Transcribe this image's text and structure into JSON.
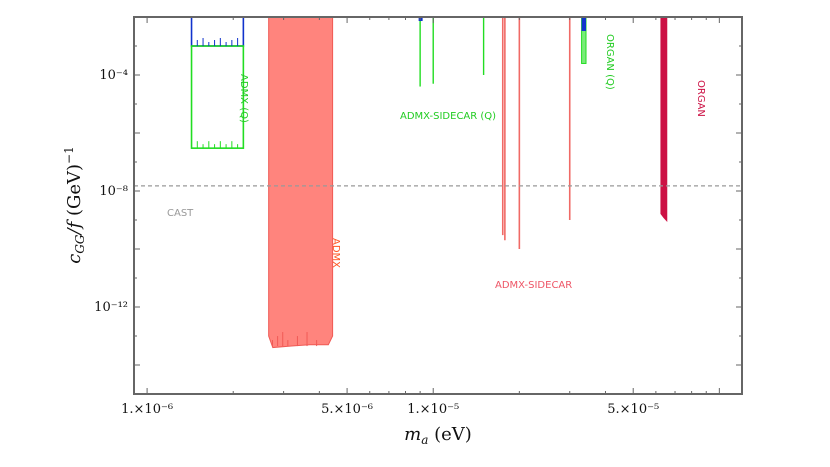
{
  "chart_data": {
    "type": "area",
    "title": "",
    "xlabel": "m_a (eV)",
    "ylabel": "c_GG/f (GeV)^-1",
    "xscale": "log",
    "yscale": "log",
    "xlim": [
      9e-07,
      0.00012
    ],
    "ylim": [
      1e-15,
      0.01
    ],
    "x_ticks": [
      {
        "value": 1e-06,
        "label": "1.×10⁻⁶"
      },
      {
        "value": 5e-06,
        "label": "5.×10⁻⁶"
      },
      {
        "value": 1e-05,
        "label": "1.×10⁻⁵"
      },
      {
        "value": 5e-05,
        "label": "5.×10⁻⁵"
      }
    ],
    "y_ticks": [
      {
        "value": 0.0001,
        "label": "10⁻⁴"
      },
      {
        "value": 1e-08,
        "label": "10⁻⁸"
      },
      {
        "value": 1e-12,
        "label": "10⁻¹²"
      }
    ],
    "axis_titles": {
      "x_main": "m",
      "x_sub": "a",
      "x_unit": " (eV)",
      "y_main": "c",
      "y_sub": "GG",
      "y_mid": "/f",
      "y_unit": " (GeV)",
      "y_sup": "−1"
    },
    "cast_limit": {
      "name": "CAST",
      "value": 1.5e-08,
      "color": "#999999"
    },
    "series": [
      {
        "name": "ADMX",
        "kind": "band",
        "color": "#ff6e66",
        "label_color": "#ff5522",
        "x_range": [
          2.66e-06,
          4.45e-06
        ],
        "lower_values": [
          {
            "x": 2.66e-06,
            "y": 1e-13
          },
          {
            "x": 2.75e-06,
            "y": 4e-14
          },
          {
            "x": 3.2e-06,
            "y": 4.5e-14
          },
          {
            "x": 3.7e-06,
            "y": 5e-14
          },
          {
            "x": 4.3e-06,
            "y": 5e-14
          },
          {
            "x": 4.45e-06,
            "y": 1e-13
          }
        ]
      },
      {
        "name": "ADMX (Q)",
        "kind": "band",
        "color": "#22dd22",
        "label_color": "#22cc22",
        "x_range": [
          1.43e-06,
          2.17e-06
        ],
        "lower_value": 3e-07
      },
      {
        "name": "ADMX (blue)",
        "kind": "band",
        "color": "#1133cc",
        "x_range": [
          1.43e-06,
          2.17e-06
        ],
        "lower_value": 0.001,
        "legend": false
      },
      {
        "name": "ADMX-SIDECAR",
        "kind": "spikes",
        "color": "#f06a66",
        "label_color": "#ee5566",
        "points": [
          {
            "x": 1.75e-05,
            "y": 3e-10
          },
          {
            "x": 1.78e-05,
            "y": 2e-10
          },
          {
            "x": 2e-05,
            "y": 1e-10
          },
          {
            "x": 3e-05,
            "y": 1e-09
          }
        ]
      },
      {
        "name": "ADMX-SIDECAR (Q)",
        "kind": "spikes",
        "color": "#22dd22",
        "label_color": "#22cc22",
        "points": [
          {
            "x": 9e-06,
            "y": 4e-05
          },
          {
            "x": 1e-05,
            "y": 5e-05
          },
          {
            "x": 1.5e-05,
            "y": 0.0001
          }
        ]
      },
      {
        "name": "ORGAN",
        "kind": "band",
        "color": "#cc1144",
        "label_color": "#cc1144",
        "x_range": [
          6.25e-05,
          6.55e-05
        ],
        "lower_value": 1.2e-09
      },
      {
        "name": "ORGAN (Q)",
        "kind": "band",
        "color": "#22dd22",
        "label_color": "#22cc22",
        "x_range": [
          3.3e-05,
          3.42e-05
        ],
        "lower_value": 0.00025
      }
    ]
  }
}
